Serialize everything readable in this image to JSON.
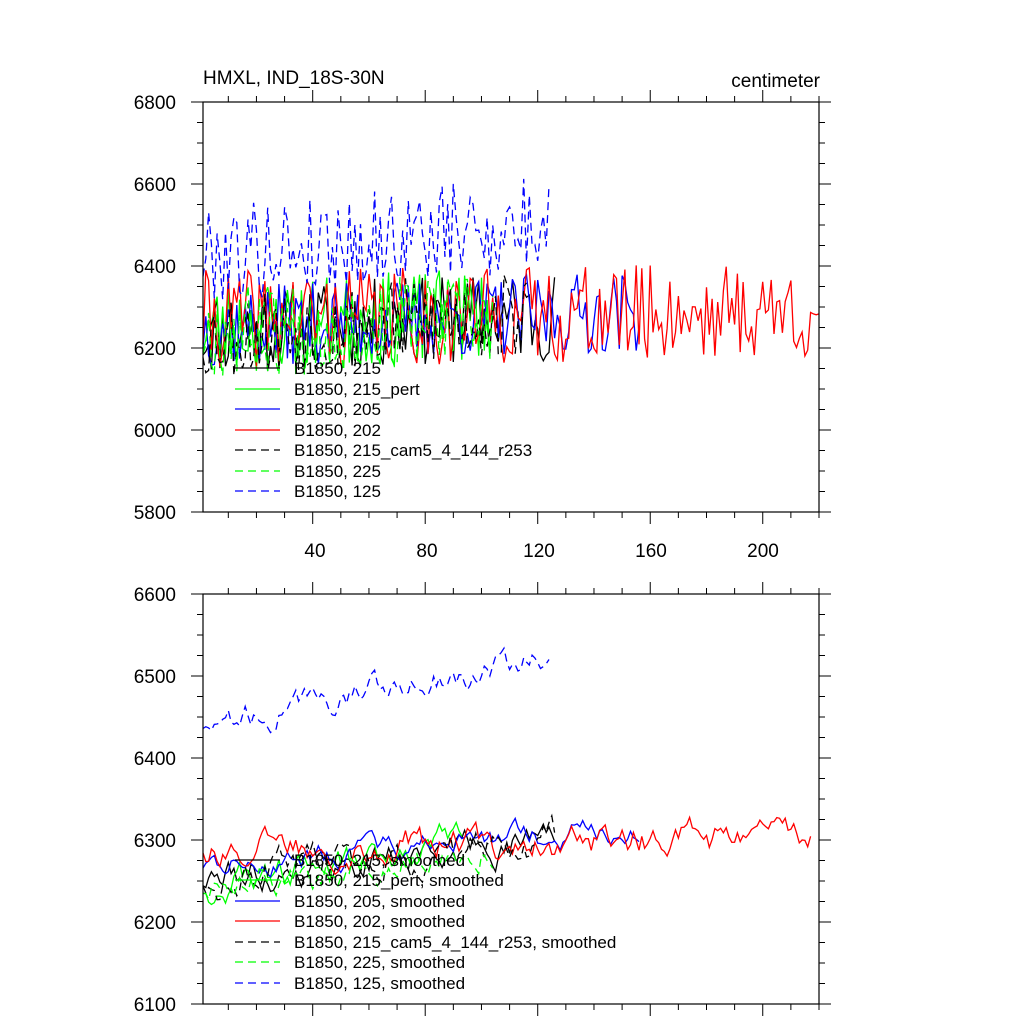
{
  "colors": {
    "black": "#000000",
    "green": "#00ff00",
    "blue": "#0000ff",
    "red": "#ff0000"
  },
  "chart_data": [
    {
      "type": "line",
      "title": "HMXL, IND_18S-30N",
      "units": "centimeter",
      "xlim": [
        1,
        220
      ],
      "ylim": [
        5800,
        6800
      ],
      "yticks": [
        "5800",
        "6000",
        "6200",
        "6400",
        "6600",
        "6800"
      ],
      "xticks": [
        "40",
        "80",
        "120",
        "160",
        "200"
      ],
      "series": [
        {
          "name": "B1850, 215",
          "color": "#000000",
          "dashed": false,
          "length": 126,
          "base": 6240,
          "trend": 40,
          "amp": 110,
          "seed": 11
        },
        {
          "name": "B1850, 215_pert",
          "color": "#00ff00",
          "dashed": false,
          "length": 103,
          "base": 6250,
          "trend": 30,
          "amp": 115,
          "seed": 23
        },
        {
          "name": "B1850, 205",
          "color": "#0000ff",
          "dashed": false,
          "length": 156,
          "base": 6250,
          "trend": 40,
          "amp": 100,
          "seed": 37
        },
        {
          "name": "B1850, 202",
          "color": "#ff0000",
          "dashed": false,
          "length": 220,
          "base": 6270,
          "trend": 20,
          "amp": 120,
          "seed": 41
        },
        {
          "name": "B1850, 215_cam5_4_144_r253",
          "color": "#000000",
          "dashed": true,
          "length": 116,
          "base": 6230,
          "trend": 50,
          "amp": 110,
          "seed": 53
        },
        {
          "name": "B1850, 225",
          "color": "#00ff00",
          "dashed": true,
          "length": 104,
          "base": 6240,
          "trend": 30,
          "amp": 115,
          "seed": 67
        },
        {
          "name": "B1850, 125",
          "color": "#0000ff",
          "dashed": true,
          "length": 124,
          "base": 6430,
          "trend": 70,
          "amp": 120,
          "seed": 79
        }
      ]
    },
    {
      "type": "line",
      "title": "",
      "units": "",
      "xlim": [
        1,
        220
      ],
      "ylim": [
        6100,
        6600
      ],
      "yticks": [
        "6100",
        "6200",
        "6300",
        "6400",
        "6500",
        "6600"
      ],
      "xticks": [],
      "series": [
        {
          "name": "B1850, 215, smoothed",
          "color": "#000000",
          "dashed": false,
          "length": 126,
          "base": 6250,
          "trend": 55,
          "amp": 40,
          "seed": 111
        },
        {
          "name": "B1850, 215_pert, smoothed",
          "color": "#00ff00",
          "dashed": false,
          "length": 93,
          "base": 6240,
          "trend": 60,
          "amp": 40,
          "seed": 123
        },
        {
          "name": "B1850, 205, smoothed",
          "color": "#0000ff",
          "dashed": false,
          "length": 156,
          "base": 6270,
          "trend": 45,
          "amp": 30,
          "seed": 137
        },
        {
          "name": "B1850, 202, smoothed",
          "color": "#ff0000",
          "dashed": false,
          "length": 217,
          "base": 6290,
          "trend": 15,
          "amp": 40,
          "seed": 141
        },
        {
          "name": "B1850, 215_cam5_4_144_r253, smoothed",
          "color": "#000000",
          "dashed": true,
          "length": 126,
          "base": 6250,
          "trend": 55,
          "amp": 45,
          "seed": 153
        },
        {
          "name": "B1850, 225, smoothed",
          "color": "#00ff00",
          "dashed": true,
          "length": 104,
          "base": 6240,
          "trend": 55,
          "amp": 40,
          "seed": 167
        },
        {
          "name": "B1850, 125, smoothed",
          "color": "#0000ff",
          "dashed": true,
          "length": 124,
          "base": 6440,
          "trend": 85,
          "amp": 35,
          "seed": 179
        }
      ]
    }
  ]
}
